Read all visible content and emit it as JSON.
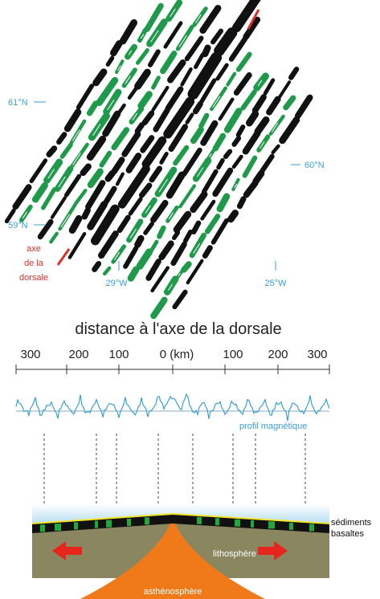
{
  "map": {
    "lat_labels": [
      "61°N",
      "60°N",
      "59°N"
    ],
    "lon_labels": [
      "29°W",
      "25°W"
    ],
    "axis_label": [
      "axe",
      "de la",
      "dorsale"
    ]
  },
  "profile": {
    "title": "distance à l'axe de la dorsale",
    "ticks": [
      "300",
      "200",
      "100",
      "0 (km)",
      "100",
      "200",
      "300"
    ],
    "curve_label": "profil magnétique"
  },
  "section": {
    "sediments": "sédiments",
    "basalts": "basaltes",
    "lithosphere": "lithosphère",
    "asthenosphere": "asthénosphère"
  }
}
